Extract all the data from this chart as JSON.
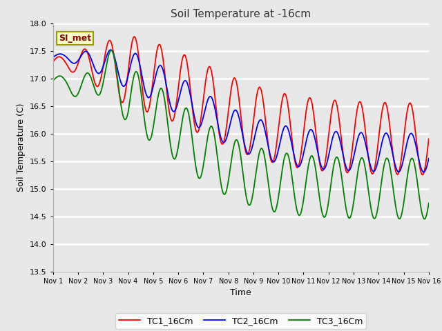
{
  "title": "Soil Temperature at -16cm",
  "xlabel": "Time",
  "ylabel": "Soil Temperature (C)",
  "ylim": [
    13.5,
    18.0
  ],
  "yticks": [
    13.5,
    14.0,
    14.5,
    15.0,
    15.5,
    16.0,
    16.5,
    17.0,
    17.5,
    18.0
  ],
  "xtick_labels": [
    "Nov 1",
    "Nov 2",
    "Nov 3",
    "Nov 4",
    "Nov 5",
    "Nov 6",
    "Nov 7",
    "Nov 8",
    "Nov 9",
    "Nov 10",
    "Nov 11",
    "Nov 12",
    "Nov 13",
    "Nov 14",
    "Nov 15",
    "Nov 16"
  ],
  "legend_labels": [
    "TC1_16Cm",
    "TC2_16Cm",
    "TC3_16Cm"
  ],
  "colors": [
    "red",
    "blue",
    "green"
  ],
  "annotation_text": "SI_met",
  "annotation_bg": "#ffffcc",
  "annotation_border": "#999900",
  "bg_color": "#e8e8e8",
  "plot_bg": "#e8e8e8",
  "grid_color": "white",
  "title_color": "#333333",
  "n_points": 720
}
